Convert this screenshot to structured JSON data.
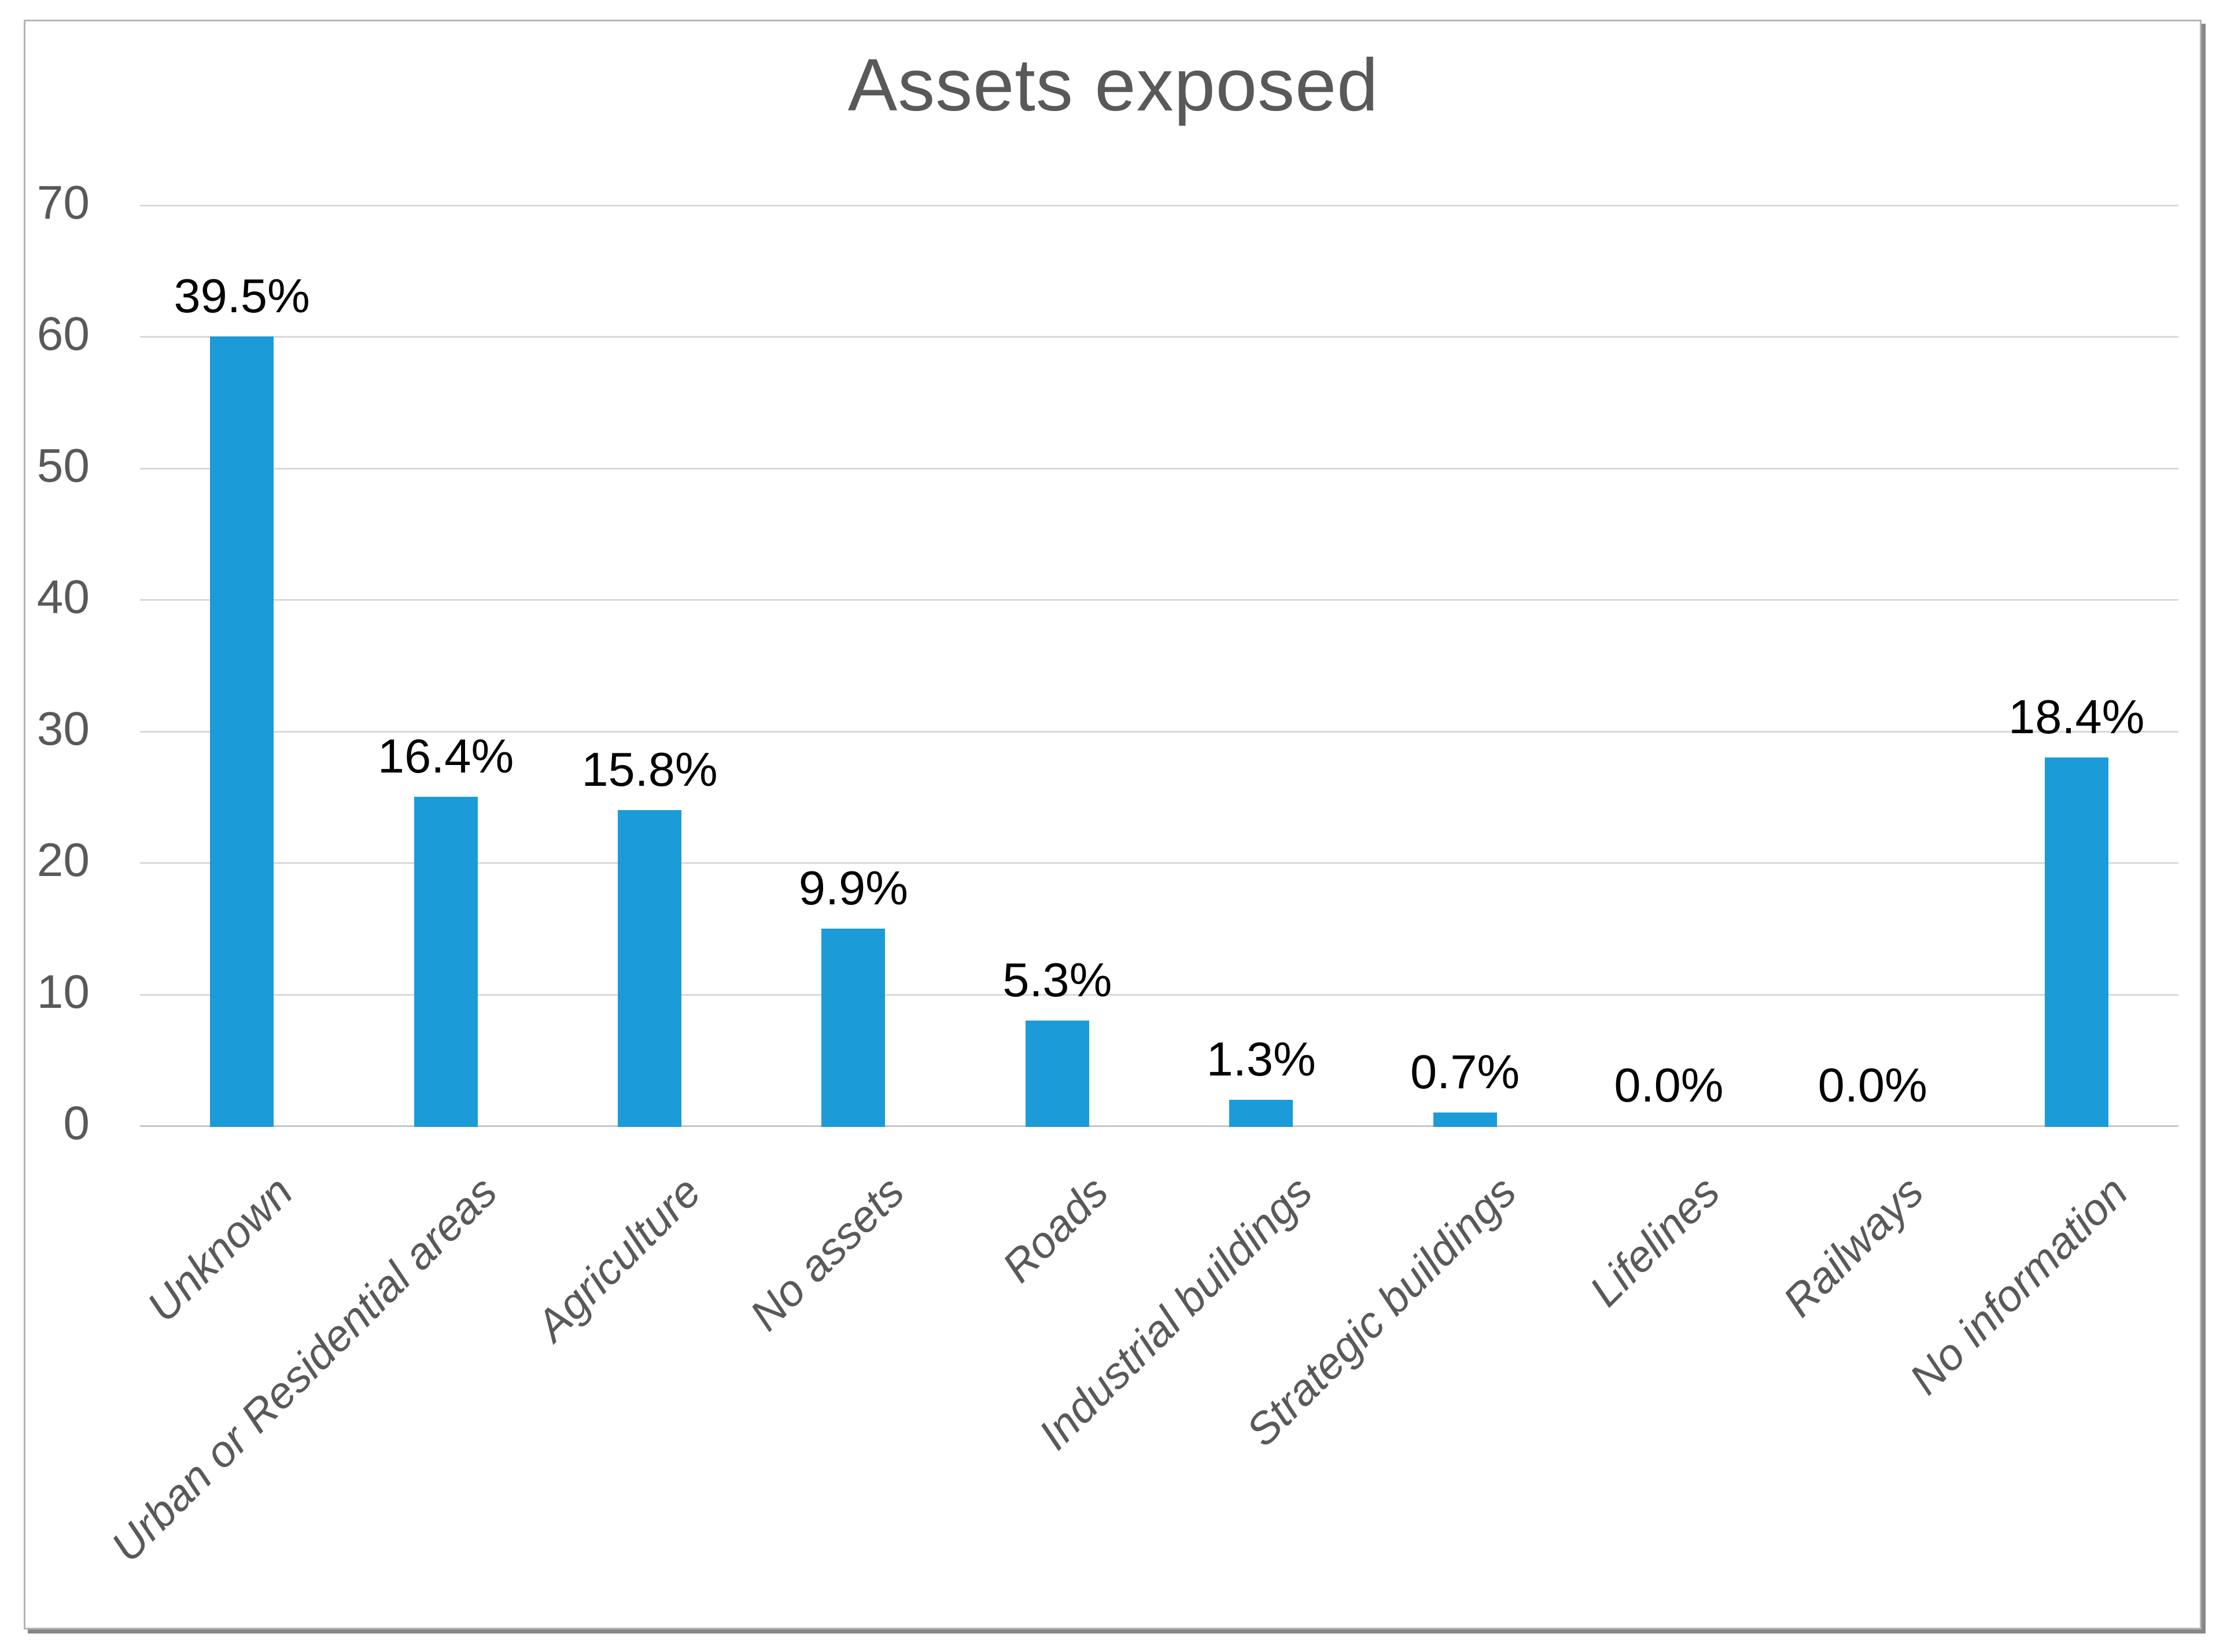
{
  "chart": {
    "title": "Assets exposed",
    "colors": {
      "bar": "#1B9BD7",
      "gridline": "#D9D9D9",
      "baseline": "#C6C6C6",
      "axis_text": "#595959",
      "title_text": "#595959",
      "category_text": "#595959",
      "data_label_text": "#000000",
      "frame_border": "#B5B5B5",
      "frame_shadow": "#878787",
      "background": "#FFFFFF"
    }
  },
  "chart_data": {
    "type": "bar",
    "title": "Assets exposed",
    "categories": [
      "Unknown",
      "Urban or Residential areas",
      "Agriculture",
      "No assets",
      "Roads",
      "Industrial buildings",
      "Strategic buildings",
      "Lifelines",
      "Railways",
      "No information"
    ],
    "values": [
      60,
      25,
      24,
      15,
      8,
      2,
      1,
      0,
      0,
      28
    ],
    "data_labels": [
      "39.5%",
      "16.4%",
      "15.8%",
      "9.9%",
      "5.3%",
      "1.3%",
      "0.7%",
      "0.0%",
      "0.0%",
      "18.4%"
    ],
    "xlabel": "",
    "ylabel": "",
    "ylim": [
      0,
      70
    ],
    "yticks": [
      0,
      10,
      20,
      30,
      40,
      50,
      60,
      70
    ],
    "grid": true,
    "gridlines": "horizontal",
    "legend": false,
    "bar_orientation": "vertical",
    "category_label_rotation_deg": 45,
    "category_label_style": "italic"
  }
}
